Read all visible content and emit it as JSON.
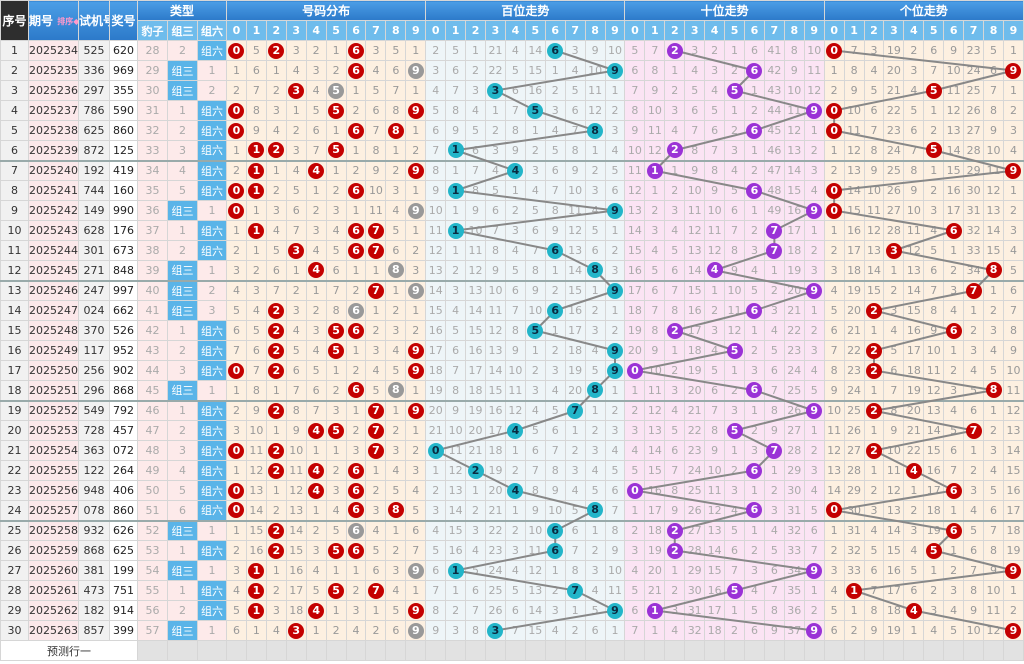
{
  "header": {
    "seq": "序号",
    "issue": "期号",
    "sort": "排序",
    "test": "试机号",
    "draw": "奖号",
    "type": "类型",
    "dist": "号码分布",
    "bai": "百位走势",
    "shi": "十位走势",
    "ge": "个位走势",
    "type_cols": [
      "豹子",
      "组三",
      "组六"
    ],
    "digits": [
      "0",
      "1",
      "2",
      "3",
      "4",
      "5",
      "6",
      "7",
      "8",
      "9"
    ]
  },
  "labels": {
    "zu3": "组三",
    "zu6": "组六",
    "predict": "预测行一"
  },
  "colors": {
    "dist_hit": "#c40000",
    "dist_repeat": "#999999",
    "bai_hit": "#22b5c9",
    "shi_hit": "#9a32d6",
    "ge_hit": "#c40000",
    "header": "#2c79c9"
  },
  "initial": {
    "bao": 28,
    "zu3": 2,
    "dist": [
      null,
      5,
      null,
      3,
      2,
      1,
      null,
      3,
      5,
      1
    ],
    "bai": [
      2,
      5,
      1,
      21,
      4,
      14,
      null,
      3,
      9,
      10
    ],
    "shi": [
      5,
      7,
      null,
      3,
      2,
      1,
      6,
      41,
      8,
      10
    ],
    "ge": [
      null,
      7,
      3,
      19,
      2,
      6,
      9,
      23,
      5,
      1
    ]
  },
  "rows": [
    [
      "1",
      "2025234",
      "525",
      "620"
    ],
    [
      "2",
      "2025235",
      "336",
      "969"
    ],
    [
      "3",
      "2025236",
      "297",
      "355"
    ],
    [
      "4",
      "2025237",
      "786",
      "590"
    ],
    [
      "5",
      "2025238",
      "625",
      "860"
    ],
    [
      "6",
      "2025239",
      "872",
      "125"
    ],
    [
      "7",
      "2025240",
      "192",
      "419"
    ],
    [
      "8",
      "2025241",
      "744",
      "160"
    ],
    [
      "9",
      "2025242",
      "149",
      "990"
    ],
    [
      "10",
      "2025243",
      "628",
      "176"
    ],
    [
      "11",
      "2025244",
      "301",
      "673"
    ],
    [
      "12",
      "2025245",
      "271",
      "848"
    ],
    [
      "13",
      "2025246",
      "247",
      "997"
    ],
    [
      "14",
      "2025247",
      "024",
      "662"
    ],
    [
      "15",
      "2025248",
      "370",
      "526"
    ],
    [
      "16",
      "2025249",
      "117",
      "952"
    ],
    [
      "17",
      "2025250",
      "256",
      "902"
    ],
    [
      "18",
      "2025251",
      "296",
      "868"
    ],
    [
      "19",
      "2025252",
      "549",
      "792"
    ],
    [
      "20",
      "2025253",
      "728",
      "457"
    ],
    [
      "21",
      "2025254",
      "363",
      "072"
    ],
    [
      "22",
      "2025255",
      "122",
      "264"
    ],
    [
      "23",
      "2025256",
      "948",
      "406"
    ],
    [
      "24",
      "2025257",
      "078",
      "860"
    ],
    [
      "25",
      "2025258",
      "932",
      "626"
    ],
    [
      "26",
      "2025259",
      "868",
      "625"
    ],
    [
      "27",
      "2025260",
      "381",
      "199"
    ],
    [
      "28",
      "2025261",
      "473",
      "751"
    ],
    [
      "29",
      "2025262",
      "182",
      "914"
    ],
    [
      "30",
      "2025263",
      "857",
      "399"
    ]
  ]
}
